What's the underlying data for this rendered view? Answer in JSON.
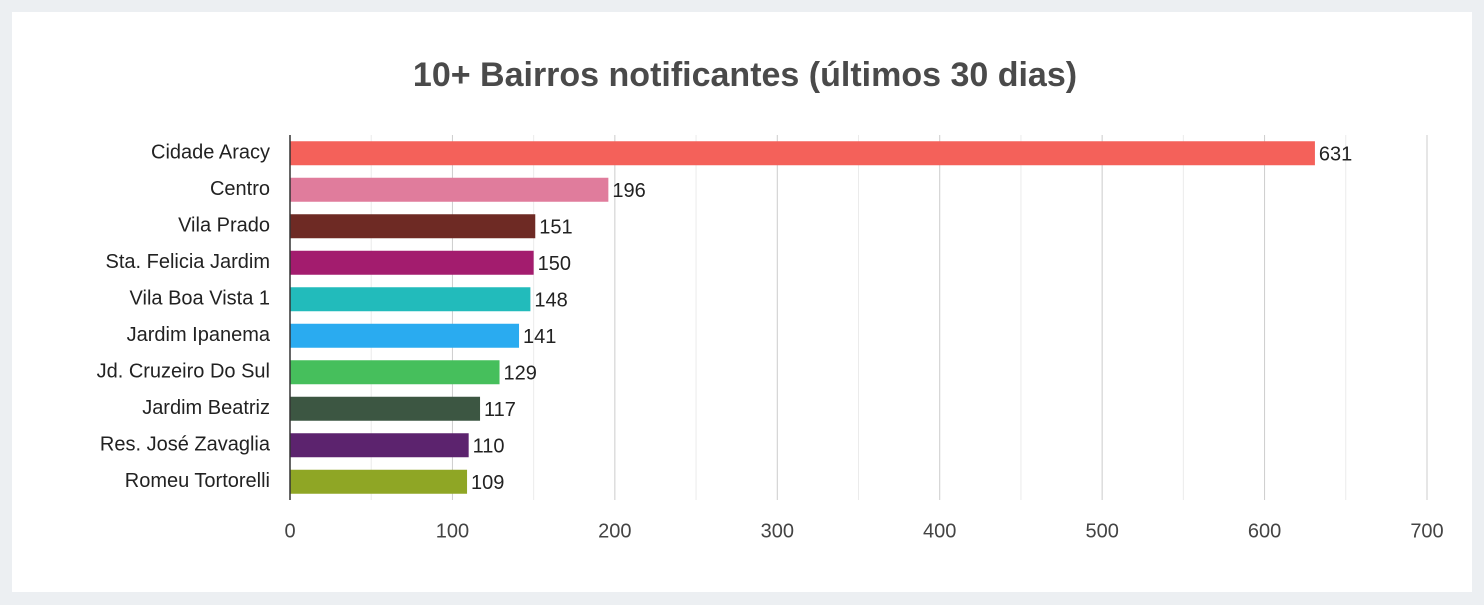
{
  "chart_data": {
    "type": "barh",
    "title": "10+ Bairros notificantes (últimos 30 dias)",
    "categories": [
      "Cidade Aracy",
      "Centro",
      "Vila Prado",
      "Sta. Felicia Jardim",
      "Vila Boa Vista 1",
      "Jardim Ipanema",
      "Jd. Cruzeiro Do Sul",
      "Jardim Beatriz",
      "Res. José Zavaglia",
      "Romeu Tortorelli"
    ],
    "values": [
      631,
      196,
      151,
      150,
      148,
      141,
      129,
      117,
      110,
      109
    ],
    "colors": [
      "#f4615a",
      "#e07c9c",
      "#6e2a24",
      "#a31c6e",
      "#22bbbb",
      "#2aabf0",
      "#46bf5c",
      "#3c5642",
      "#5c236e",
      "#8fa625"
    ],
    "xlim": [
      0,
      700
    ],
    "xticks": [
      0,
      100,
      200,
      300,
      400,
      500,
      600,
      700
    ],
    "minor_xticks": [
      50,
      150,
      250,
      350,
      450,
      550,
      650
    ],
    "grid": true
  }
}
